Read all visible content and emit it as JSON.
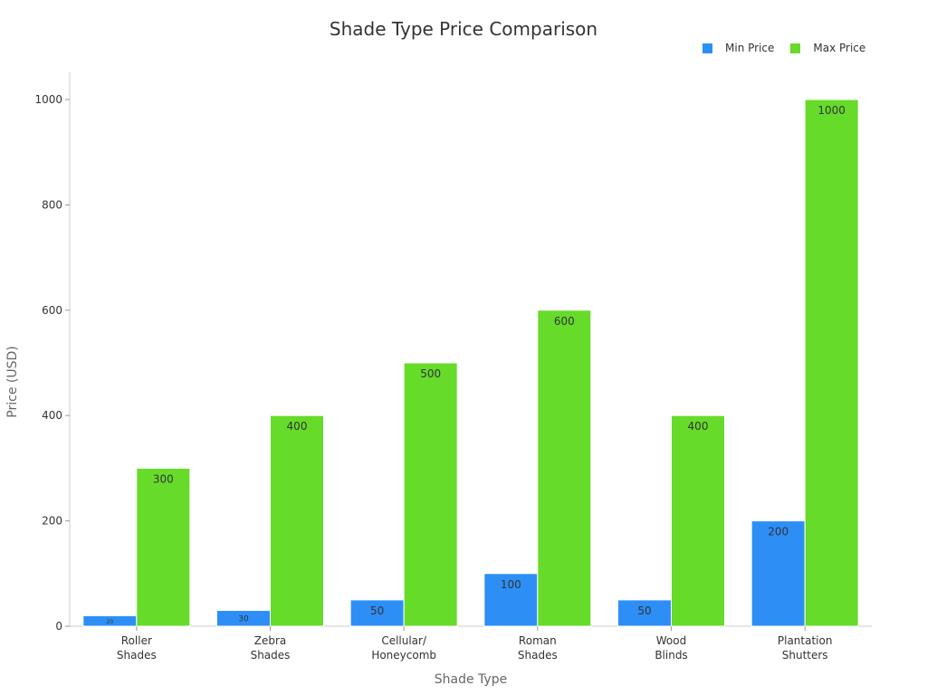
{
  "chart_data": {
    "type": "bar",
    "title": "Shade Type Price Comparison",
    "xlabel": "Shade Type",
    "ylabel": "Price (USD)",
    "ylim": [
      0,
      1050
    ],
    "yticks": [
      0,
      200,
      400,
      600,
      800,
      1000
    ],
    "categories": [
      [
        "Roller",
        "Shades"
      ],
      [
        "Zebra",
        "Shades"
      ],
      [
        "Cellular/",
        "Honeycomb"
      ],
      [
        "Roman",
        "Shades"
      ],
      [
        "Wood",
        "Blinds"
      ],
      [
        "Plantation",
        "Shutters"
      ]
    ],
    "series": [
      {
        "name": "Min Price",
        "color": "#2d8ff6",
        "values": [
          20,
          30,
          50,
          100,
          50,
          200
        ]
      },
      {
        "name": "Max Price",
        "color": "#66db2a",
        "values": [
          300,
          400,
          500,
          600,
          400,
          1000
        ]
      }
    ],
    "legend_position": "top-right",
    "grid": false
  }
}
